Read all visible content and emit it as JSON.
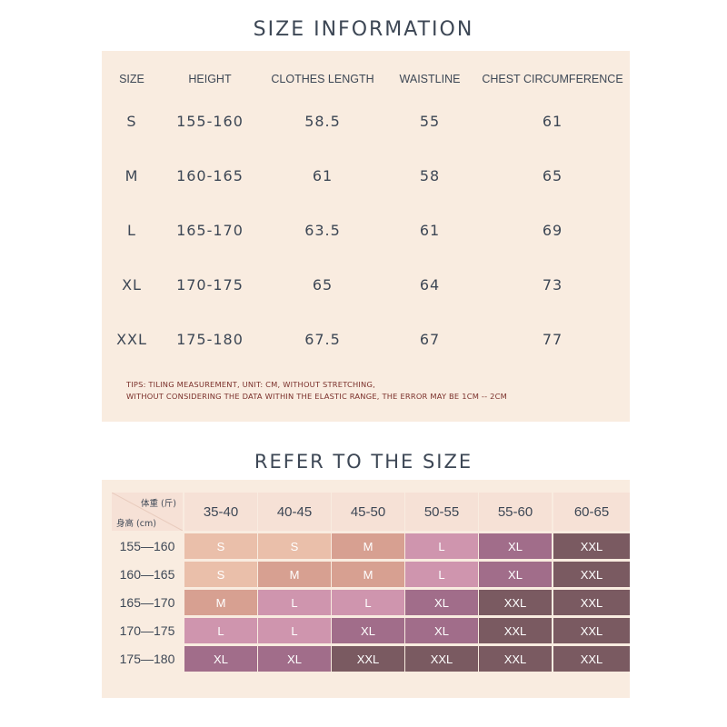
{
  "size_info": {
    "title": "SIZE INFORMATION",
    "headers": [
      "SIZE",
      "HEIGHT",
      "CLOTHES LENGTH",
      "WAISTLINE",
      "CHEST CIRCUMFERENCE"
    ],
    "rows": [
      [
        "S",
        "155-160",
        "58.5",
        "55",
        "61"
      ],
      [
        "M",
        "160-165",
        "61",
        "58",
        "65"
      ],
      [
        "L",
        "165-170",
        "63.5",
        "61",
        "69"
      ],
      [
        "XL",
        "170-175",
        "65",
        "64",
        "73"
      ],
      [
        "XXL",
        "175-180",
        "67.5",
        "67",
        "77"
      ]
    ],
    "tips_line1": "TIPS: TILING MEASUREMENT, UNIT: CM, WITHOUT STRETCHING,",
    "tips_line2": "WITHOUT CONSIDERING THE DATA WITHIN THE ELASTIC RANGE, THE ERROR MAY BE 1CM -- 2CM"
  },
  "size_ref": {
    "title": "REFER TO THE SIZE",
    "corner_weight": "体重 (斤)",
    "corner_height": "身高 (cm)",
    "columns": [
      "35-40",
      "40-45",
      "45-50",
      "50-55",
      "55-60",
      "60-65"
    ],
    "rows": [
      {
        "height": "155—160",
        "sizes": [
          "S",
          "S",
          "M",
          "L",
          "XL",
          "XXL"
        ]
      },
      {
        "height": "160—165",
        "sizes": [
          "S",
          "M",
          "M",
          "L",
          "XL",
          "XXL"
        ]
      },
      {
        "height": "165—170",
        "sizes": [
          "M",
          "L",
          "L",
          "XL",
          "XXL",
          "XXL"
        ]
      },
      {
        "height": "170—175",
        "sizes": [
          "L",
          "L",
          "XL",
          "XL",
          "XXL",
          "XXL"
        ]
      },
      {
        "height": "175—180",
        "sizes": [
          "XL",
          "XL",
          "XXL",
          "XXL",
          "XXL",
          "XXL"
        ]
      }
    ],
    "size_colors": {
      "S": "#eabfaa",
      "M": "#d7a091",
      "L": "#cf95ae",
      "XL": "#a16d8a",
      "XXL": "#7a5a61"
    }
  }
}
